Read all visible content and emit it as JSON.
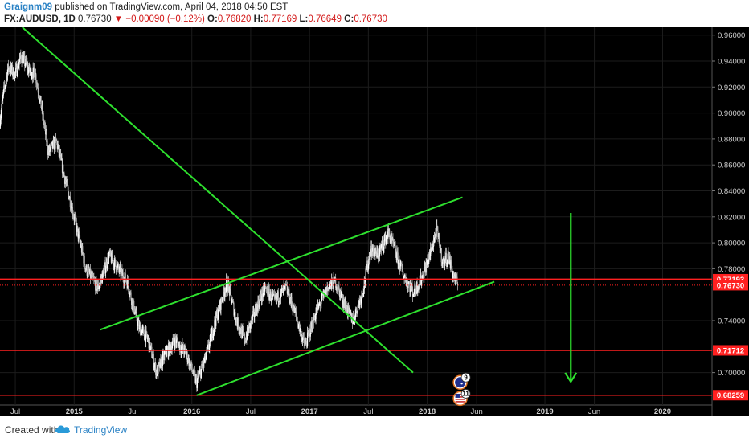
{
  "header": {
    "author": "Graignm09",
    "published_text": "published on TradingView.com, April 04, 2018 04:50 EST",
    "symbol": "FX:AUDUSD, 1D",
    "last": "0.76730",
    "change": "▼ −0.00090 (−0.12%)",
    "o_label": "O:",
    "o_value": "0.76820",
    "h_label": "H:",
    "h_value": "0.77169",
    "l_label": "L:",
    "l_value": "0.76649",
    "c_label": "C:",
    "c_value": "0.76730"
  },
  "footer": {
    "created_with": "Created with",
    "brand": "TradingView"
  },
  "colors": {
    "background": "#000000",
    "grid": "#1c1c1c",
    "up_candle": "#ffffff",
    "down_candle": "#b8b8b8",
    "trendline": "#2ee02e",
    "level": "#ff2020",
    "axis_text": "#d0d0d0",
    "badge_bg": "#d81e1e"
  },
  "icons": {
    "event_aud": "australia-flag-icon",
    "event_usd": "us-flag-icon",
    "logo": "tradingview-cloud-icon"
  },
  "chart_data": {
    "type": "candlestick",
    "symbol": "FX:AUDUSD",
    "interval": "1D",
    "y_axis": {
      "range": [
        0.675,
        0.966
      ],
      "ticks": [
        0.96,
        0.94,
        0.92,
        0.9,
        0.88,
        0.86,
        0.84,
        0.82,
        0.8,
        0.78,
        0.74,
        0.7
      ],
      "tick_labels": [
        "0.96000",
        "0.94000",
        "0.92000",
        "0.90000",
        "0.88000",
        "0.86000",
        "0.84000",
        "0.82000",
        "0.80000",
        "0.78000",
        "0.74000",
        "0.70000"
      ]
    },
    "x_axis": {
      "range": [
        2014.37,
        2020.42
      ],
      "ticks": [
        2014.5,
        2015.0,
        2015.5,
        2016.0,
        2016.5,
        2017.0,
        2017.5,
        2018.0,
        2018.42,
        2019.0,
        2019.42,
        2020.0
      ],
      "tick_labels": [
        "Jul",
        "2015",
        "Jul",
        "2016",
        "Jul",
        "2017",
        "Jul",
        "2018",
        "Jun",
        "2019",
        "Jun",
        "2020"
      ]
    },
    "grid": true,
    "price_anchors": [
      {
        "t": 2014.37,
        "p": 0.895
      },
      {
        "t": 2014.4,
        "p": 0.915
      },
      {
        "t": 2014.44,
        "p": 0.935
      },
      {
        "t": 2014.5,
        "p": 0.93
      },
      {
        "t": 2014.55,
        "p": 0.944
      },
      {
        "t": 2014.62,
        "p": 0.932
      },
      {
        "t": 2014.67,
        "p": 0.93
      },
      {
        "t": 2014.73,
        "p": 0.9
      },
      {
        "t": 2014.78,
        "p": 0.87
      },
      {
        "t": 2014.85,
        "p": 0.878
      },
      {
        "t": 2014.92,
        "p": 0.85
      },
      {
        "t": 2015.0,
        "p": 0.82
      },
      {
        "t": 2015.05,
        "p": 0.8
      },
      {
        "t": 2015.1,
        "p": 0.78
      },
      {
        "t": 2015.2,
        "p": 0.765
      },
      {
        "t": 2015.3,
        "p": 0.79
      },
      {
        "t": 2015.37,
        "p": 0.78
      },
      {
        "t": 2015.45,
        "p": 0.77
      },
      {
        "t": 2015.55,
        "p": 0.735
      },
      {
        "t": 2015.63,
        "p": 0.725
      },
      {
        "t": 2015.7,
        "p": 0.7
      },
      {
        "t": 2015.78,
        "p": 0.715
      },
      {
        "t": 2015.86,
        "p": 0.725
      },
      {
        "t": 2015.95,
        "p": 0.715
      },
      {
        "t": 2016.04,
        "p": 0.692
      },
      {
        "t": 2016.12,
        "p": 0.712
      },
      {
        "t": 2016.2,
        "p": 0.74
      },
      {
        "t": 2016.3,
        "p": 0.77
      },
      {
        "t": 2016.38,
        "p": 0.74
      },
      {
        "t": 2016.45,
        "p": 0.725
      },
      {
        "t": 2016.55,
        "p": 0.75
      },
      {
        "t": 2016.62,
        "p": 0.765
      },
      {
        "t": 2016.7,
        "p": 0.755
      },
      {
        "t": 2016.8,
        "p": 0.765
      },
      {
        "t": 2016.88,
        "p": 0.745
      },
      {
        "t": 2016.96,
        "p": 0.72
      },
      {
        "t": 2017.05,
        "p": 0.745
      },
      {
        "t": 2017.15,
        "p": 0.765
      },
      {
        "t": 2017.22,
        "p": 0.77
      },
      {
        "t": 2017.3,
        "p": 0.752
      },
      {
        "t": 2017.37,
        "p": 0.74
      },
      {
        "t": 2017.45,
        "p": 0.762
      },
      {
        "t": 2017.52,
        "p": 0.795
      },
      {
        "t": 2017.58,
        "p": 0.79
      },
      {
        "t": 2017.67,
        "p": 0.808
      },
      {
        "t": 2017.72,
        "p": 0.795
      },
      {
        "t": 2017.8,
        "p": 0.775
      },
      {
        "t": 2017.88,
        "p": 0.762
      },
      {
        "t": 2017.95,
        "p": 0.772
      },
      {
        "t": 2018.02,
        "p": 0.79
      },
      {
        "t": 2018.08,
        "p": 0.81
      },
      {
        "t": 2018.13,
        "p": 0.785
      },
      {
        "t": 2018.18,
        "p": 0.79
      },
      {
        "t": 2018.22,
        "p": 0.775
      },
      {
        "t": 2018.26,
        "p": 0.7673
      }
    ],
    "trendlines": [
      {
        "name": "long-downtrend",
        "from": {
          "t": 2014.56,
          "p": 0.966
        },
        "to": {
          "t": 2017.88,
          "p": 0.7
        }
      },
      {
        "name": "channel-upper",
        "from": {
          "t": 2015.22,
          "p": 0.733
        },
        "to": {
          "t": 2018.3,
          "p": 0.835
        }
      },
      {
        "name": "channel-lower",
        "from": {
          "t": 2016.04,
          "p": 0.6825
        },
        "to": {
          "t": 2018.57,
          "p": 0.77
        }
      }
    ],
    "arrow": {
      "from": {
        "t": 2019.22,
        "p": 0.823
      },
      "to": {
        "t": 2019.22,
        "p": 0.693
      }
    },
    "levels": [
      {
        "name": "level-077193",
        "price": 0.77193,
        "label": "0.77193",
        "line": "solid"
      },
      {
        "name": "level-current",
        "price": 0.7673,
        "label": "0.76730",
        "line": "dotted"
      },
      {
        "name": "level-071712",
        "price": 0.71712,
        "label": "0.71712",
        "line": "solid"
      },
      {
        "name": "level-068259",
        "price": 0.68259,
        "label": "0.68259",
        "line": "solid"
      }
    ],
    "events": [
      {
        "name": "event-aud",
        "t": 2018.28,
        "p": 0.6925,
        "count": "9",
        "icon": "australia-flag-icon"
      },
      {
        "name": "event-usd",
        "t": 2018.28,
        "p": 0.68,
        "count": "11",
        "icon": "us-flag-icon"
      }
    ]
  }
}
